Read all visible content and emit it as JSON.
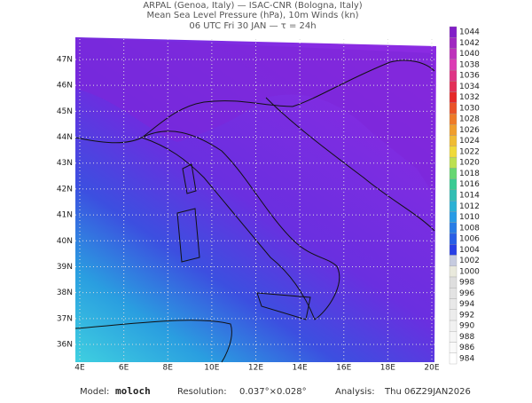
{
  "header": {
    "lines": [
      "ARPAL (Genoa, Italy)  —  ISAC-CNR (Bologna, Italy)",
      "Mean Sea Level Pressure (hPa), 10m Winds (kn)",
      "06 UTC Fri 30 JAN  —  τ = 24h"
    ]
  },
  "map": {
    "lon_ticks": [
      {
        "value": 4,
        "label": "4E"
      },
      {
        "value": 6,
        "label": "6E"
      },
      {
        "value": 8,
        "label": "8E"
      },
      {
        "value": 10,
        "label": "10E"
      },
      {
        "value": 12,
        "label": "12E"
      },
      {
        "value": 14,
        "label": "14E"
      },
      {
        "value": 16,
        "label": "16E"
      },
      {
        "value": 18,
        "label": "18E"
      },
      {
        "value": 20,
        "label": "20E"
      }
    ],
    "lat_ticks": [
      {
        "value": 36,
        "label": "36N"
      },
      {
        "value": 37,
        "label": "37N"
      },
      {
        "value": 38,
        "label": "38N"
      },
      {
        "value": 39,
        "label": "39N"
      },
      {
        "value": 40,
        "label": "40N"
      },
      {
        "value": 41,
        "label": "41N"
      },
      {
        "value": 42,
        "label": "42N"
      },
      {
        "value": 43,
        "label": "43N"
      },
      {
        "value": 44,
        "label": "44N"
      },
      {
        "value": 45,
        "label": "45N"
      },
      {
        "value": 46,
        "label": "46N"
      },
      {
        "value": 47,
        "label": "47N"
      }
    ],
    "colorbar": [
      984,
      986,
      988,
      990,
      992,
      994,
      996,
      998,
      1000,
      1002,
      1004,
      1006,
      1008,
      1010,
      1012,
      1014,
      1016,
      1018,
      1020,
      1022,
      1024,
      1026,
      1028,
      1030,
      1032,
      1034,
      1036,
      1038,
      1040,
      1042,
      1044
    ]
  },
  "footer": {
    "model_label": "Model:",
    "model": "moloch",
    "resolution_label": "Resolution:",
    "resolution": "0.037°×0.028°",
    "analysis_label": "Analysis:",
    "analysis": "Thu 06Z29JAN2026"
  }
}
